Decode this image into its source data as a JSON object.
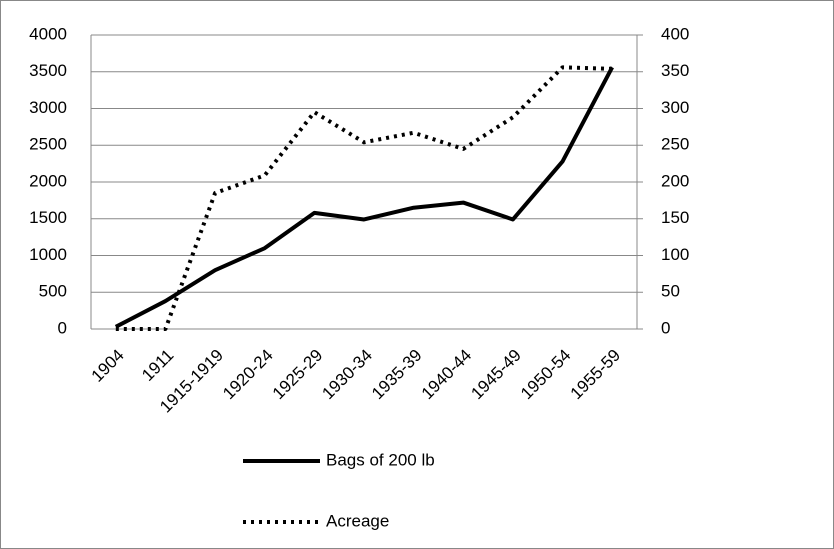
{
  "chart_data": {
    "type": "line",
    "categories": [
      "1904",
      "1911",
      "1915-1919",
      "1920-24",
      "1925-29",
      "1930-34",
      "1935-39",
      "1940-44",
      "1945-49",
      "1950-54",
      "1955-59"
    ],
    "series": [
      {
        "name": "Bags of 200 lb",
        "color": "#000000",
        "dash": "solid",
        "values": [
          30,
          380,
          800,
          1100,
          1580,
          1490,
          1650,
          1720,
          1490,
          2280,
          3560
        ]
      },
      {
        "name": "Acreage",
        "color": "#000000",
        "dash": "dotted",
        "axis": "y2",
        "values": [
          0,
          0,
          185,
          209,
          295,
          254,
          267,
          245,
          288,
          356,
          354
        ]
      }
    ],
    "ylim": [
      0,
      4000
    ],
    "yticks": [
      0,
      500,
      1000,
      1500,
      2000,
      2500,
      3000,
      3500,
      4000
    ],
    "y2lim": [
      0,
      400
    ],
    "y2ticks": [
      0,
      50,
      100,
      150,
      200,
      250,
      300,
      350,
      400
    ],
    "grid": true,
    "legend": "bottom"
  }
}
